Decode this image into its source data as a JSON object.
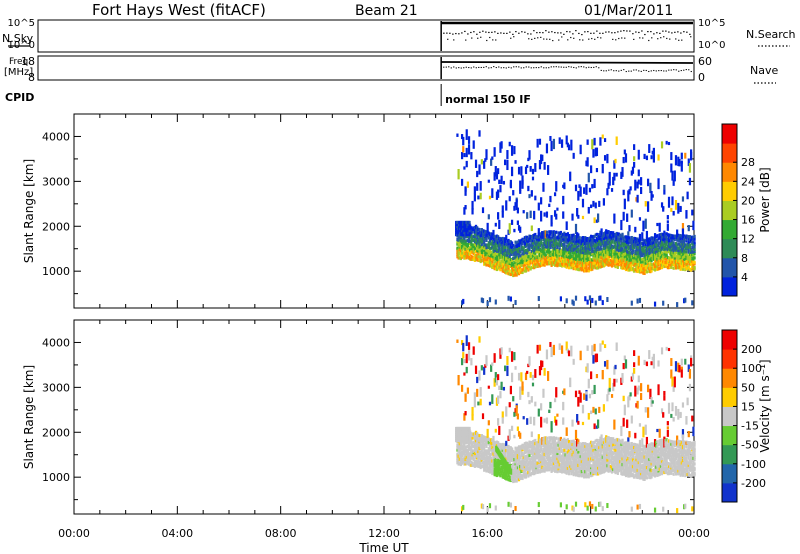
{
  "header": {
    "station": "Fort Hays West (fitACF)",
    "beam": "Beam 21",
    "date": "01/Mar/2011"
  },
  "chart_data": [
    {
      "type": "line",
      "panel": "nsky-nsearch",
      "left_label": "N.Sky",
      "right_label": "N.Search",
      "left_ticks": [
        "10^5",
        "10^0"
      ],
      "right_ticks": [
        "10^5",
        "10^0"
      ],
      "data_start_hour": 14.75,
      "data_end_hour": 24
    },
    {
      "type": "line",
      "panel": "freq-nave",
      "left_label_1": "Freq.",
      "left_label_2": "[MHz]",
      "right_label": "Nave",
      "left_ticks": [
        "18",
        "8"
      ],
      "right_ticks": [
        "60",
        "0"
      ],
      "data_start_hour": 14.75,
      "data_end_hour": 24
    },
    {
      "type": "table",
      "panel": "cpid",
      "label": "CPID",
      "program": "normal 150 IF",
      "start_hour": 14.75
    },
    {
      "type": "heatmap",
      "panel": "power",
      "ylabel": "Slant Range [km]",
      "yticks": [
        "1000",
        "2000",
        "3000",
        "4000"
      ],
      "ylim": [
        180,
        4500
      ],
      "xlim": [
        0,
        24
      ],
      "colorbar_label": "Power [dB]",
      "colorbar_ticks": [
        "4",
        "8",
        "12",
        "16",
        "20",
        "24",
        "28"
      ],
      "colors": [
        "#0022dd",
        "#2255aa",
        "#2e8b57",
        "#33aa33",
        "#aacc22",
        "#ffcc00",
        "#ff8800",
        "#ff4400",
        "#ee0000"
      ],
      "band_center_km": [
        [
          14.8,
          1550
        ],
        [
          15.5,
          1500
        ],
        [
          16.3,
          1300
        ],
        [
          17.0,
          1150
        ],
        [
          17.6,
          1300
        ],
        [
          18.3,
          1400
        ],
        [
          19.0,
          1350
        ],
        [
          19.8,
          1250
        ],
        [
          20.6,
          1400
        ],
        [
          21.3,
          1300
        ],
        [
          22.0,
          1200
        ],
        [
          22.8,
          1350
        ],
        [
          23.5,
          1300
        ],
        [
          24.0,
          1280
        ]
      ]
    },
    {
      "type": "heatmap",
      "panel": "velocity",
      "ylabel": "Slant Range [km]",
      "yticks": [
        "1000",
        "2000",
        "3000",
        "4000"
      ],
      "ylim": [
        180,
        4500
      ],
      "xlim": [
        0,
        24
      ],
      "colorbar_label": "Velocity [m s⁻¹]",
      "colorbar_ticks": [
        "200",
        "100",
        "50",
        "15",
        "-15",
        "-50",
        "-100",
        "-200"
      ],
      "colors": [
        "#1133cc",
        "#2266aa",
        "#339955",
        "#66cc33",
        "#c8c8c8",
        "#ffcc00",
        "#ff8800",
        "#ff3300",
        "#ee0000"
      ]
    }
  ],
  "x_axis": {
    "title": "Time UT",
    "ticks": [
      "00:00",
      "04:00",
      "08:00",
      "12:00",
      "16:00",
      "20:00",
      "00:00"
    ]
  }
}
